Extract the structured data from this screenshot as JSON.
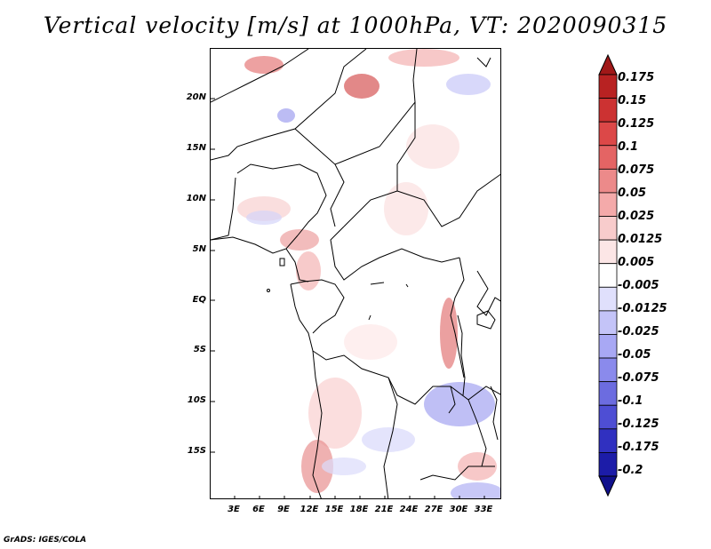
{
  "title": "Vertical velocity [m/s] at 1000hPa, VT: 2020090315",
  "footer": "GrADS: IGES/COLA",
  "lat_labels": [
    "20N",
    "15N",
    "10N",
    "5N",
    "EQ",
    "5S",
    "10S",
    "15S"
  ],
  "lon_labels": [
    "3E",
    "6E",
    "9E",
    "12E",
    "15E",
    "18E",
    "21E",
    "24E",
    "27E",
    "30E",
    "33E"
  ],
  "colorbar": {
    "levels": [
      "0.175",
      "0.15",
      "0.125",
      "0.1",
      "0.075",
      "0.05",
      "0.025",
      "0.0125",
      "0.005",
      "-0.005",
      "-0.0125",
      "-0.025",
      "-0.05",
      "-0.075",
      "-0.1",
      "-0.125",
      "-0.175",
      "-0.2"
    ],
    "colors": [
      "#a01818",
      "#b82222",
      "#cc3232",
      "#dc4848",
      "#e46464",
      "#ec8a8a",
      "#f4aaaa",
      "#f8cccc",
      "#fce6e6",
      "#ffffff",
      "#e0e0fc",
      "#c4c4f8",
      "#a8a8f4",
      "#8a8aec",
      "#6c6ce0",
      "#4e4ed4",
      "#3030c0",
      "#1c1ca8",
      "#10108c"
    ]
  }
}
